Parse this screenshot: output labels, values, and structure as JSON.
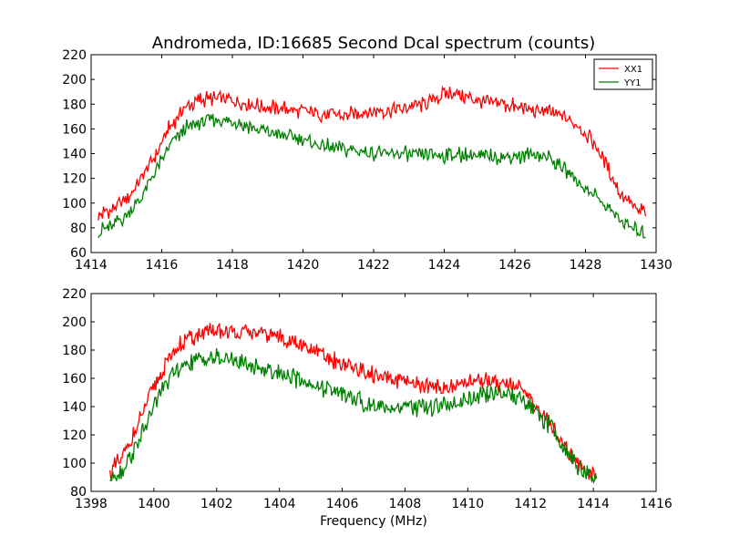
{
  "chart_data": [
    {
      "type": "line",
      "title": "Andromeda, ID:16685 Second Dcal spectrum (counts)",
      "xlabel": "",
      "ylabel": "",
      "xlim": [
        1414,
        1430
      ],
      "ylim": [
        60,
        220
      ],
      "xticks": [
        "1414",
        "1416",
        "1418",
        "1420",
        "1422",
        "1424",
        "1426",
        "1428",
        "1430"
      ],
      "yticks": [
        "60",
        "80",
        "100",
        "120",
        "140",
        "160",
        "180",
        "200",
        "220"
      ],
      "legend": "top-right",
      "grid": false,
      "series": [
        {
          "name": "XX1",
          "color": "#ff0000",
          "x": [
            1414.2,
            1414.6,
            1415.0,
            1415.4,
            1415.8,
            1416.2,
            1416.6,
            1417.0,
            1417.4,
            1417.8,
            1418.2,
            1418.6,
            1419.0,
            1419.4,
            1419.8,
            1420.2,
            1420.6,
            1421.0,
            1421.4,
            1421.8,
            1422.2,
            1422.6,
            1423.0,
            1423.4,
            1423.8,
            1424.2,
            1424.6,
            1425.0,
            1425.4,
            1425.8,
            1426.2,
            1426.6,
            1427.0,
            1427.4,
            1427.8,
            1428.2,
            1428.6,
            1429.0,
            1429.4,
            1429.7
          ],
          "values": [
            91,
            95,
            103,
            118,
            138,
            160,
            176,
            183,
            185,
            184,
            182,
            180,
            178,
            177,
            175,
            174,
            172,
            171,
            172,
            173,
            174,
            176,
            178,
            180,
            185,
            190,
            186,
            183,
            181,
            179,
            177,
            175,
            173,
            170,
            163,
            150,
            130,
            108,
            96,
            92
          ]
        },
        {
          "name": "YY1",
          "color": "#008000",
          "x": [
            1414.2,
            1414.6,
            1415.0,
            1415.4,
            1415.8,
            1416.2,
            1416.6,
            1417.0,
            1417.4,
            1417.8,
            1418.2,
            1418.6,
            1419.0,
            1419.4,
            1419.8,
            1420.2,
            1420.6,
            1421.0,
            1421.4,
            1421.8,
            1422.2,
            1422.6,
            1423.0,
            1423.4,
            1423.8,
            1424.2,
            1424.6,
            1425.0,
            1425.4,
            1425.8,
            1426.2,
            1426.6,
            1427.0,
            1427.4,
            1427.8,
            1428.2,
            1428.6,
            1429.0,
            1429.4,
            1429.7
          ],
          "values": [
            77,
            81,
            90,
            104,
            124,
            145,
            159,
            165,
            168,
            167,
            164,
            161,
            158,
            155,
            152,
            149,
            146,
            144,
            142,
            141,
            140,
            140,
            139,
            138,
            138,
            139,
            139,
            138,
            138,
            138,
            138,
            139,
            136,
            128,
            118,
            108,
            97,
            86,
            78,
            76
          ]
        }
      ]
    },
    {
      "type": "line",
      "title": "",
      "xlabel": "Frequency (MHz)",
      "ylabel": "",
      "xlim": [
        1398,
        1416
      ],
      "ylim": [
        80,
        220
      ],
      "xticks": [
        "1398",
        "1400",
        "1402",
        "1404",
        "1406",
        "1408",
        "1410",
        "1412",
        "1414",
        "1416"
      ],
      "yticks": [
        "80",
        "100",
        "120",
        "140",
        "160",
        "180",
        "200",
        "220"
      ],
      "grid": false,
      "series": [
        {
          "name": "XX1",
          "color": "#ff0000",
          "x": [
            1398.6,
            1399.0,
            1399.4,
            1399.8,
            1400.2,
            1400.6,
            1401.0,
            1401.4,
            1401.8,
            1402.2,
            1402.6,
            1403.0,
            1403.4,
            1403.8,
            1404.2,
            1404.6,
            1405.0,
            1405.4,
            1405.8,
            1406.2,
            1406.6,
            1407.0,
            1407.4,
            1407.8,
            1408.2,
            1408.6,
            1409.0,
            1409.4,
            1409.8,
            1410.2,
            1410.6,
            1411.0,
            1411.4,
            1411.8,
            1412.2,
            1412.6,
            1413.0,
            1413.4,
            1413.8,
            1414.1
          ],
          "values": [
            94,
            104,
            122,
            143,
            163,
            178,
            187,
            191,
            193,
            193,
            193,
            193,
            192,
            191,
            188,
            184,
            180,
            176,
            172,
            168,
            165,
            162,
            160,
            158,
            156,
            155,
            154,
            154,
            156,
            158,
            159,
            158,
            156,
            150,
            140,
            128,
            115,
            103,
            95,
            92
          ]
        },
        {
          "name": "YY1",
          "color": "#008000",
          "x": [
            1398.6,
            1399.0,
            1399.4,
            1399.8,
            1400.2,
            1400.6,
            1401.0,
            1401.4,
            1401.8,
            1402.2,
            1402.6,
            1403.0,
            1403.4,
            1403.8,
            1404.2,
            1404.6,
            1405.0,
            1405.4,
            1405.8,
            1406.2,
            1406.6,
            1407.0,
            1407.4,
            1407.8,
            1408.2,
            1408.6,
            1409.0,
            1409.4,
            1409.8,
            1410.2,
            1410.6,
            1411.0,
            1411.4,
            1411.8,
            1412.2,
            1412.6,
            1413.0,
            1413.4,
            1413.8,
            1414.1
          ],
          "values": [
            89,
            95,
            110,
            130,
            150,
            163,
            170,
            174,
            175,
            174,
            172,
            170,
            168,
            165,
            162,
            159,
            156,
            153,
            150,
            146,
            143,
            141,
            140,
            139,
            139,
            139,
            140,
            142,
            144,
            146,
            148,
            149,
            148,
            144,
            137,
            127,
            113,
            101,
            92,
            89
          ]
        }
      ]
    }
  ]
}
